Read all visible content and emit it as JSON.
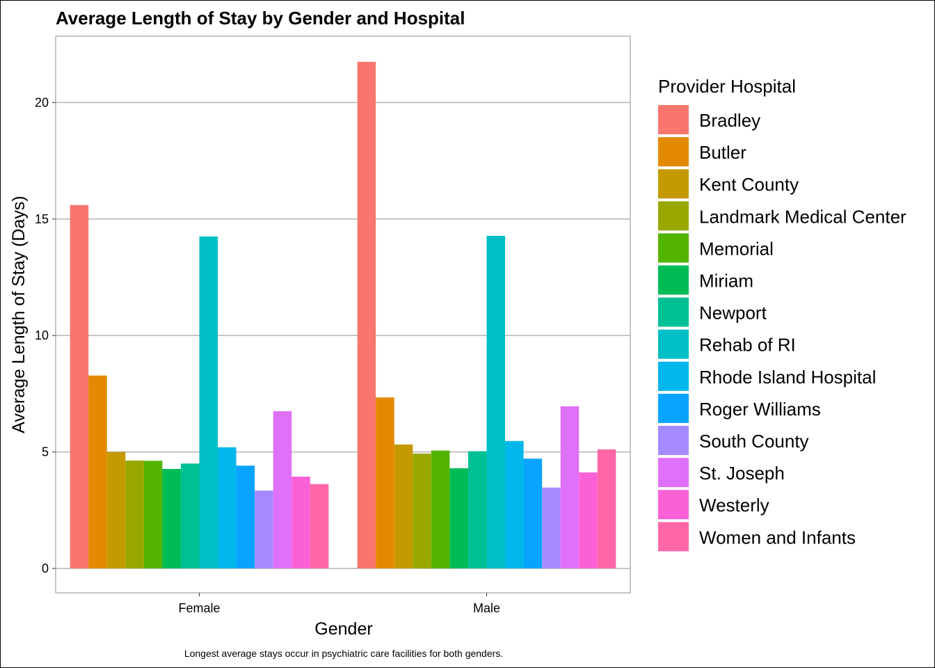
{
  "chart_data": {
    "type": "bar",
    "title": "Average Length of Stay by Gender and Hospital",
    "xlabel": "Gender",
    "ylabel": "Average Length of Stay (Days)",
    "caption": "Longest average stays occur in psychiatric care facilities for both genders.",
    "legend_title": "Provider Hospital",
    "legend_position": "right",
    "grid": "horizontal major",
    "ylim": [
      -1.05,
      22.85
    ],
    "yticks": [
      0,
      5,
      10,
      15,
      20
    ],
    "categories": [
      "Female",
      "Male"
    ],
    "series": [
      {
        "name": "Bradley",
        "color": "#F8766D",
        "values": [
          15.6,
          21.75
        ]
      },
      {
        "name": "Butler",
        "color": "#E38900",
        "values": [
          8.28,
          7.34
        ]
      },
      {
        "name": "Kent County",
        "color": "#C49A00",
        "values": [
          5.0,
          5.32
        ]
      },
      {
        "name": "Landmark Medical Center",
        "color": "#99A800",
        "values": [
          4.63,
          4.93
        ]
      },
      {
        "name": "Memorial",
        "color": "#53B400",
        "values": [
          4.62,
          5.06
        ]
      },
      {
        "name": "Miriam",
        "color": "#00BC56",
        "values": [
          4.27,
          4.3
        ]
      },
      {
        "name": "Newport",
        "color": "#00C094",
        "values": [
          4.5,
          5.03
        ]
      },
      {
        "name": "Rehab of RI",
        "color": "#00BFC4",
        "values": [
          14.25,
          14.28
        ]
      },
      {
        "name": "Rhode Island Hospital",
        "color": "#00B6EB",
        "values": [
          5.2,
          5.47
        ]
      },
      {
        "name": "Roger Williams",
        "color": "#06A4FF",
        "values": [
          4.41,
          4.71
        ]
      },
      {
        "name": "South County",
        "color": "#A58AFF",
        "values": [
          3.34,
          3.47
        ]
      },
      {
        "name": "St. Joseph",
        "color": "#DF70F8",
        "values": [
          6.75,
          6.96
        ]
      },
      {
        "name": "Westerly",
        "color": "#FB61D7",
        "values": [
          3.94,
          4.12
        ]
      },
      {
        "name": "Women and Infants",
        "color": "#FF66A8",
        "values": [
          3.62,
          5.11
        ]
      }
    ]
  }
}
